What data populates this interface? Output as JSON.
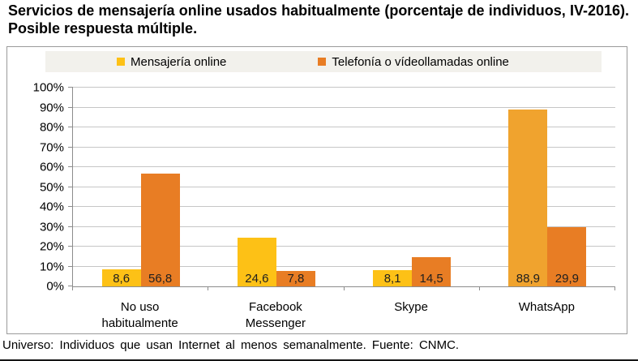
{
  "title": "Servicios de mensajería online usados habitualmente (porcentaje de individuos, IV-2016). Posible respuesta múltiple.",
  "footer": "Universo: Individuos que usan Internet al menos semanalmente.  Fuente: CNMC.",
  "legend": {
    "items": [
      {
        "label": "Mensajería online",
        "color": "#fdc116"
      },
      {
        "label": "Telefonía o vídeollamadas online",
        "color": "#e87d24"
      }
    ]
  },
  "chart_data": {
    "type": "bar",
    "title": "Servicios de mensajería online usados habitualmente (porcentaje de individuos, IV-2016). Posible respuesta múltiple.",
    "categories": [
      "No uso habitualmente",
      "Facebook Messenger",
      "Skype",
      "WhatsApp"
    ],
    "series": [
      {
        "name": "Mensajería online",
        "values": [
          8.6,
          24.6,
          8.1,
          88.9
        ],
        "labels": [
          "8,6",
          "24,6",
          "8,1",
          "88,9"
        ],
        "bar_colors": [
          "#fdc116",
          "#fdc116",
          "#fdc116",
          "#f0a32e"
        ]
      },
      {
        "name": "Telefonía o vídeollamadas online",
        "values": [
          56.8,
          7.8,
          14.5,
          29.9
        ],
        "labels": [
          "56,8",
          "7,8",
          "14,5",
          "29,9"
        ],
        "bar_colors": [
          "#e87d24",
          "#e87d24",
          "#e87d24",
          "#e87d24"
        ]
      }
    ],
    "xlabel": "",
    "ylabel": "",
    "ylim": [
      0,
      100
    ],
    "ytick_step": 10,
    "ytick_suffix": "%",
    "grid": true,
    "legend_position": "top",
    "source_note": "Universo: Individuos que usan Internet al menos semanalmente.  Fuente: CNMC."
  }
}
